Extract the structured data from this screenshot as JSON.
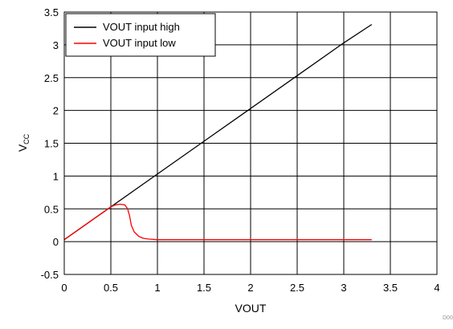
{
  "chart_data": {
    "type": "line",
    "xlabel": "VOUT",
    "ylabel_main": "V",
    "ylabel_sub": "CC",
    "xlim": [
      0,
      4
    ],
    "ylim": [
      -0.5,
      3.5
    ],
    "x_ticks": [
      0,
      0.5,
      1,
      1.5,
      2,
      2.5,
      3,
      3.5,
      4
    ],
    "x_tick_labels": [
      "0",
      "0.5",
      "1",
      "1.5",
      "2",
      "2.5",
      "3",
      "3.5",
      "4"
    ],
    "y_ticks": [
      -0.5,
      0,
      0.5,
      1,
      1.5,
      2,
      2.5,
      3,
      3.5
    ],
    "y_tick_labels": [
      "-0.5",
      "0",
      "0.5",
      "1",
      "1.5",
      "2",
      "2.5",
      "3",
      "3.5"
    ],
    "grid": true,
    "legend_position": "top-left",
    "series": [
      {
        "name": "VOUT input high",
        "color": "#000000",
        "x": [
          0,
          0.5,
          1,
          1.5,
          2,
          2.5,
          3,
          3.3
        ],
        "y": [
          0.03,
          0.53,
          1.03,
          1.53,
          2.03,
          2.53,
          3.03,
          3.31
        ]
      },
      {
        "name": "VOUT input low",
        "color": "#ff0000",
        "x": [
          0,
          0.1,
          0.2,
          0.3,
          0.4,
          0.5,
          0.55,
          0.6,
          0.65,
          0.68,
          0.7,
          0.72,
          0.75,
          0.8,
          0.85,
          0.9,
          1.0,
          1.5,
          2,
          2.5,
          3,
          3.3
        ],
        "y": [
          0.03,
          0.13,
          0.23,
          0.33,
          0.43,
          0.53,
          0.56,
          0.57,
          0.56,
          0.5,
          0.4,
          0.25,
          0.15,
          0.08,
          0.05,
          0.04,
          0.03,
          0.03,
          0.03,
          0.03,
          0.03,
          0.03
        ]
      }
    ],
    "corner_code": "D00"
  }
}
